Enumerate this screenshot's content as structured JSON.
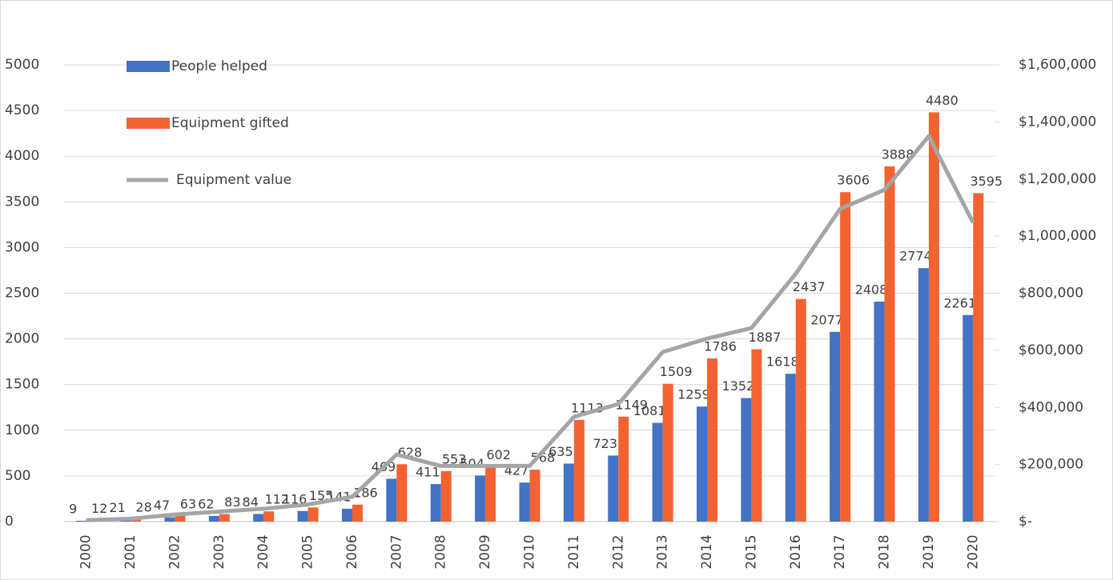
{
  "chart_data": {
    "type": "bar_line",
    "categories": [
      "2000",
      "2001",
      "2002",
      "2003",
      "2004",
      "2005",
      "2006",
      "2007",
      "2008",
      "2009",
      "2010",
      "2011",
      "2012",
      "2013",
      "2014",
      "2015",
      "2016",
      "2017",
      "2018",
      "2019",
      "2020"
    ],
    "series": [
      {
        "name": "People helped",
        "color": "#4472c4",
        "type": "bar",
        "values": [
          9,
          21,
          47,
          62,
          84,
          116,
          141,
          469,
          411,
          504,
          427,
          635,
          723,
          1081,
          1259,
          1352,
          1618,
          2077,
          2408,
          2774,
          2261
        ]
      },
      {
        "name": "Equipment gifted",
        "color": "#f26331",
        "type": "bar",
        "values": [
          12,
          28,
          63,
          83,
          112,
          155,
          186,
          628,
          553,
          602,
          568,
          1113,
          1149,
          1509,
          1786,
          1887,
          2437,
          3606,
          3888,
          4480,
          3595
        ]
      },
      {
        "name": "Equipment value",
        "color": "#a5a5a5",
        "type": "line",
        "axis": "y2",
        "values": [
          5000,
          10000,
          25000,
          35000,
          45000,
          60000,
          87000,
          235000,
          195000,
          195000,
          195000,
          367000,
          412000,
          594000,
          641000,
          678000,
          868000,
          1095000,
          1162000,
          1350000,
          1047000
        ]
      }
    ],
    "ylim": [
      0,
      5000
    ],
    "yticks": [
      0,
      500,
      1000,
      1500,
      2000,
      2500,
      3000,
      3500,
      4000,
      4500,
      5000
    ],
    "y2lim": [
      0,
      1600000
    ],
    "y2ticks": [
      {
        "value": 0,
        "label": "$-"
      },
      {
        "value": 200000,
        "label": "$200,000"
      },
      {
        "value": 400000,
        "label": "$400,000"
      },
      {
        "value": 600000,
        "label": "$600,000"
      },
      {
        "value": 800000,
        "label": "$800,000"
      },
      {
        "value": 1000000,
        "label": "$1,000,000"
      },
      {
        "value": 1200000,
        "label": "$1,200,000"
      },
      {
        "value": 1400000,
        "label": "$1,400,000"
      },
      {
        "value": 1600000,
        "label": "$1,600,000"
      }
    ],
    "grid": true,
    "legend": "top-left"
  }
}
